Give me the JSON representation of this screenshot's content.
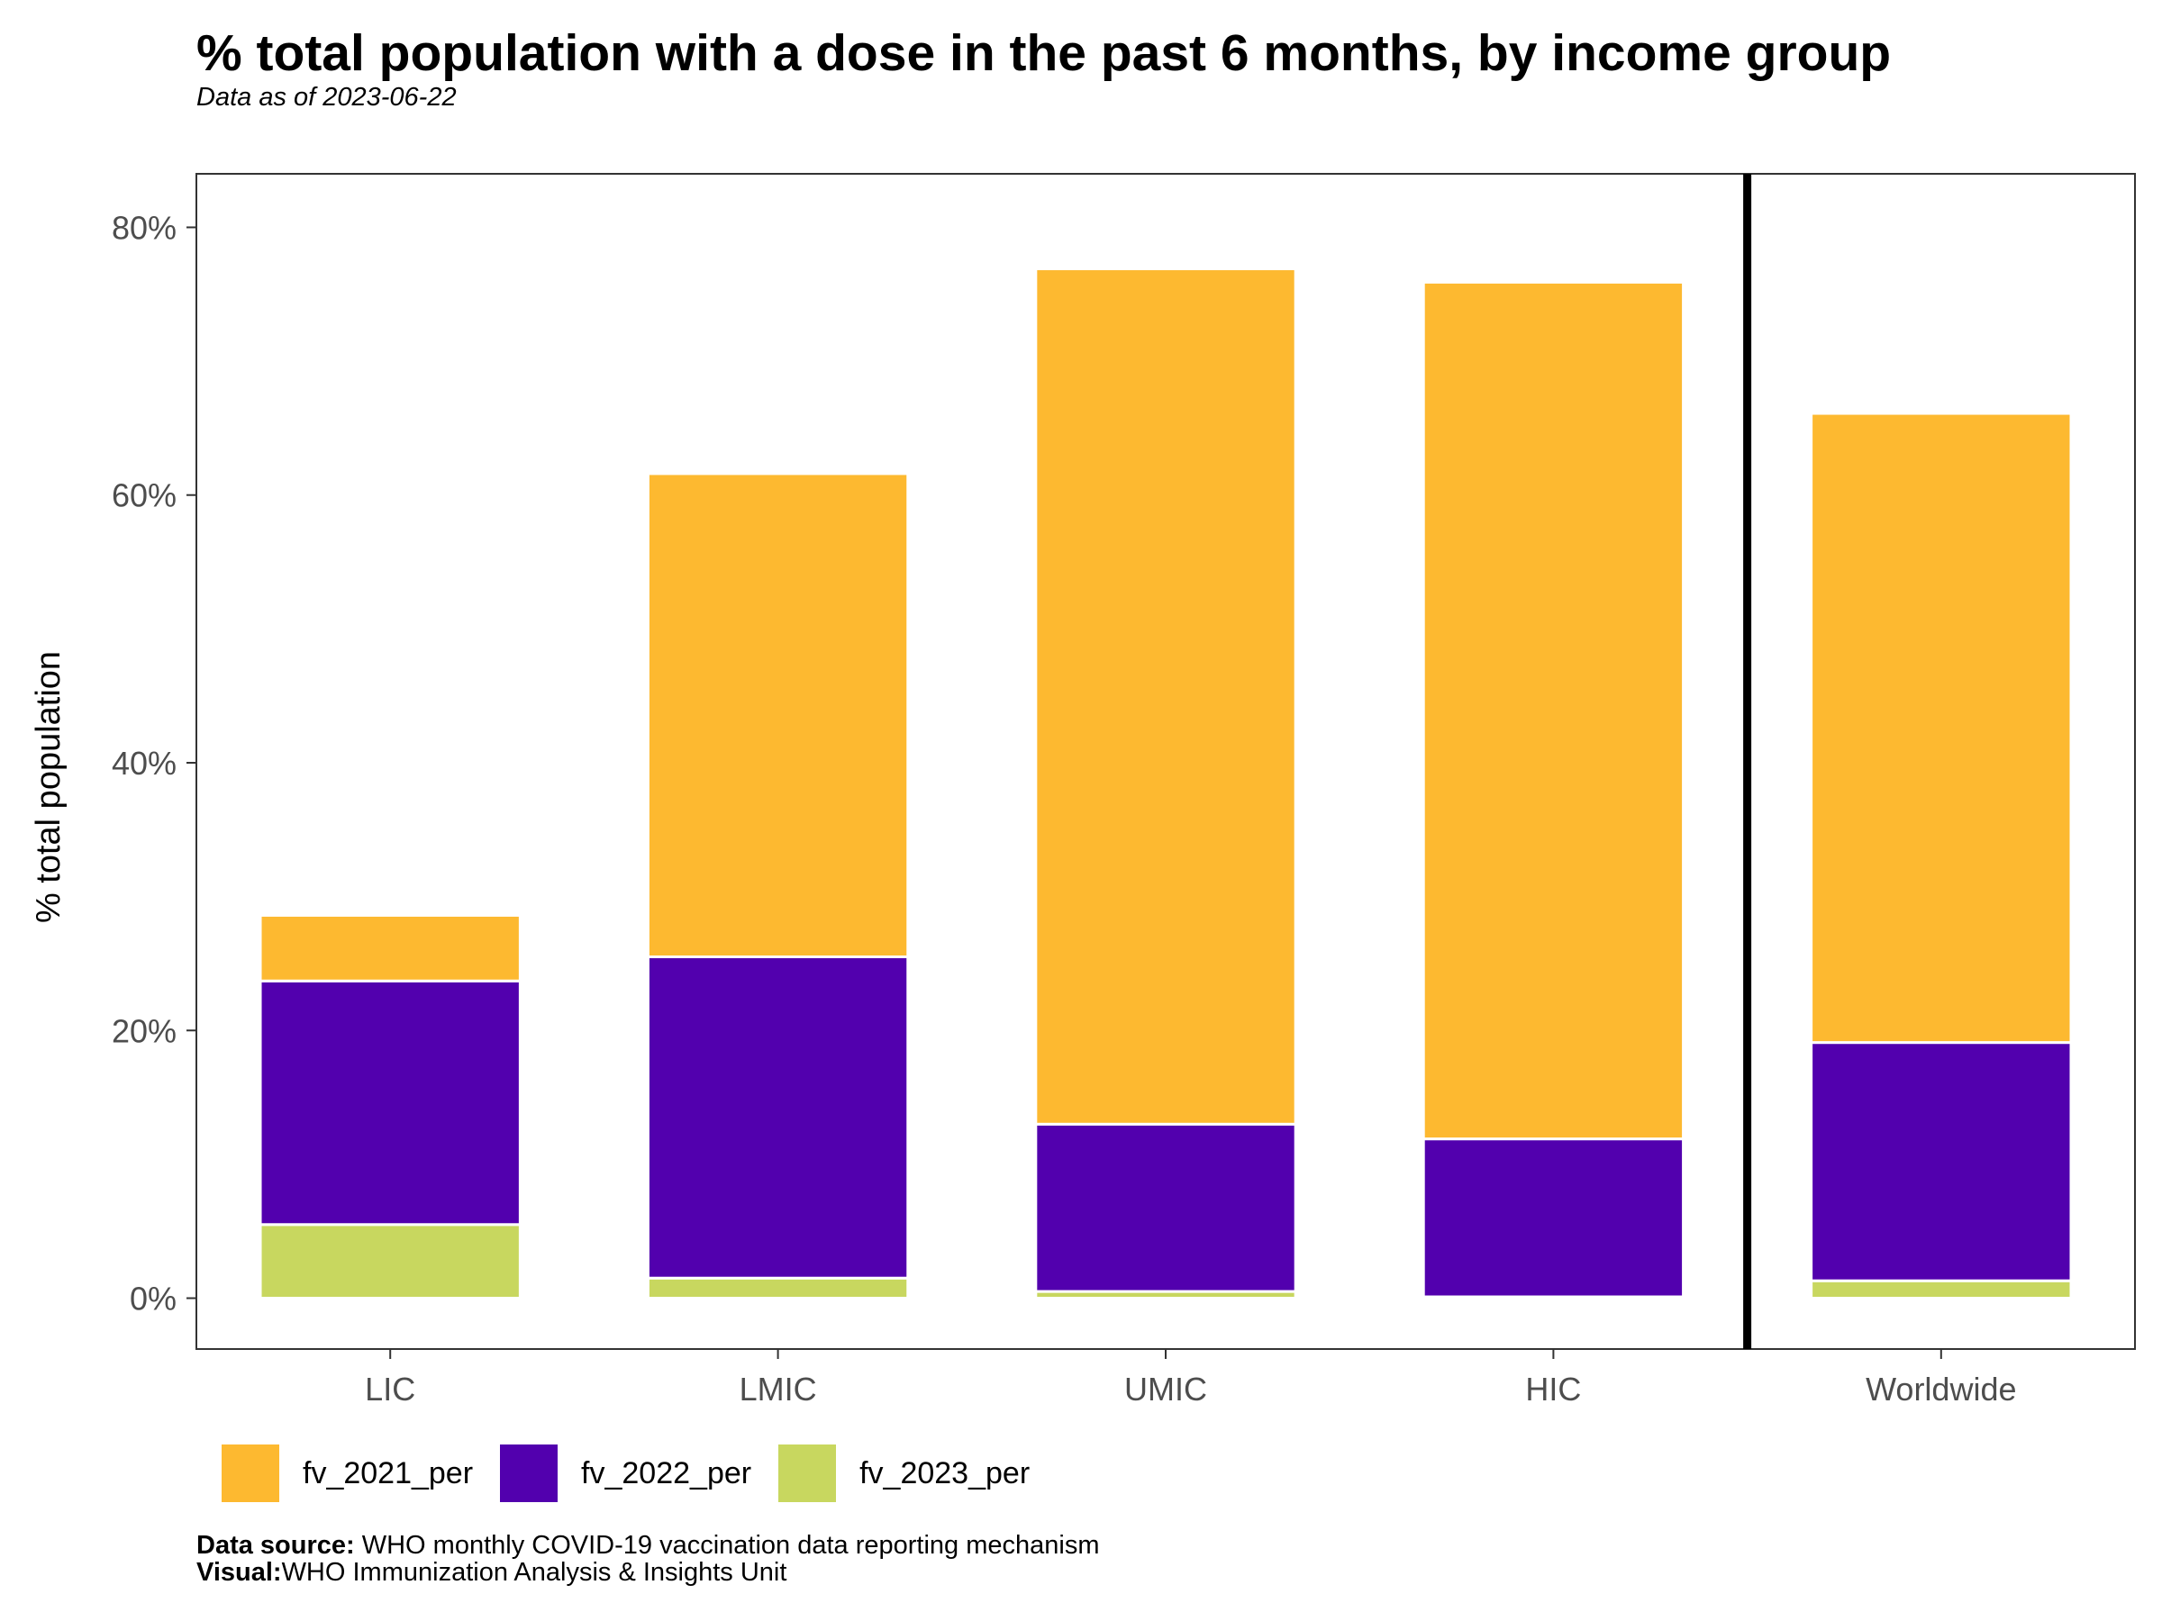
{
  "title": "% total population with a dose in the past 6 months, by income group",
  "subtitle": "Data as of 2023-06-22",
  "caption": {
    "source_label": "Data source:",
    "source_text": " WHO monthly COVID-19 vaccination data reporting mechanism",
    "visual_label": "Visual:",
    "visual_text": "WHO Immunization Analysis & Insights Unit"
  },
  "colors": {
    "fv_2021_per": "#FDB930",
    "fv_2022_per": "#5200AE",
    "fv_2023_per": "#C8D75F"
  },
  "chart_data": {
    "type": "bar",
    "stacked": true,
    "title": "% total population with a dose in the past 6 months, by income group",
    "subtitle": "Data as of 2023-06-22",
    "xlabel": "",
    "ylabel": "% total population",
    "ylim": [
      -3.8,
      84
    ],
    "yticks": [
      0,
      20,
      40,
      60,
      80
    ],
    "ytick_labels": [
      "0%",
      "20%",
      "40%",
      "60%",
      "80%"
    ],
    "categories": [
      "LIC",
      "LMIC",
      "UMIC",
      "HIC",
      "Worldwide"
    ],
    "separator_after": "HIC",
    "legend_position": "bottom-left",
    "grid": false,
    "series": [
      {
        "name": "fv_2023_per",
        "values": [
          5.5,
          1.5,
          0.5,
          0.1,
          1.3
        ]
      },
      {
        "name": "fv_2022_per",
        "values": [
          18.2,
          24.0,
          12.5,
          11.8,
          17.8
        ]
      },
      {
        "name": "fv_2021_per",
        "values": [
          4.9,
          36.1,
          63.9,
          64.0,
          47.0
        ]
      }
    ],
    "legend": [
      "fv_2021_per",
      "fv_2022_per",
      "fv_2023_per"
    ]
  }
}
